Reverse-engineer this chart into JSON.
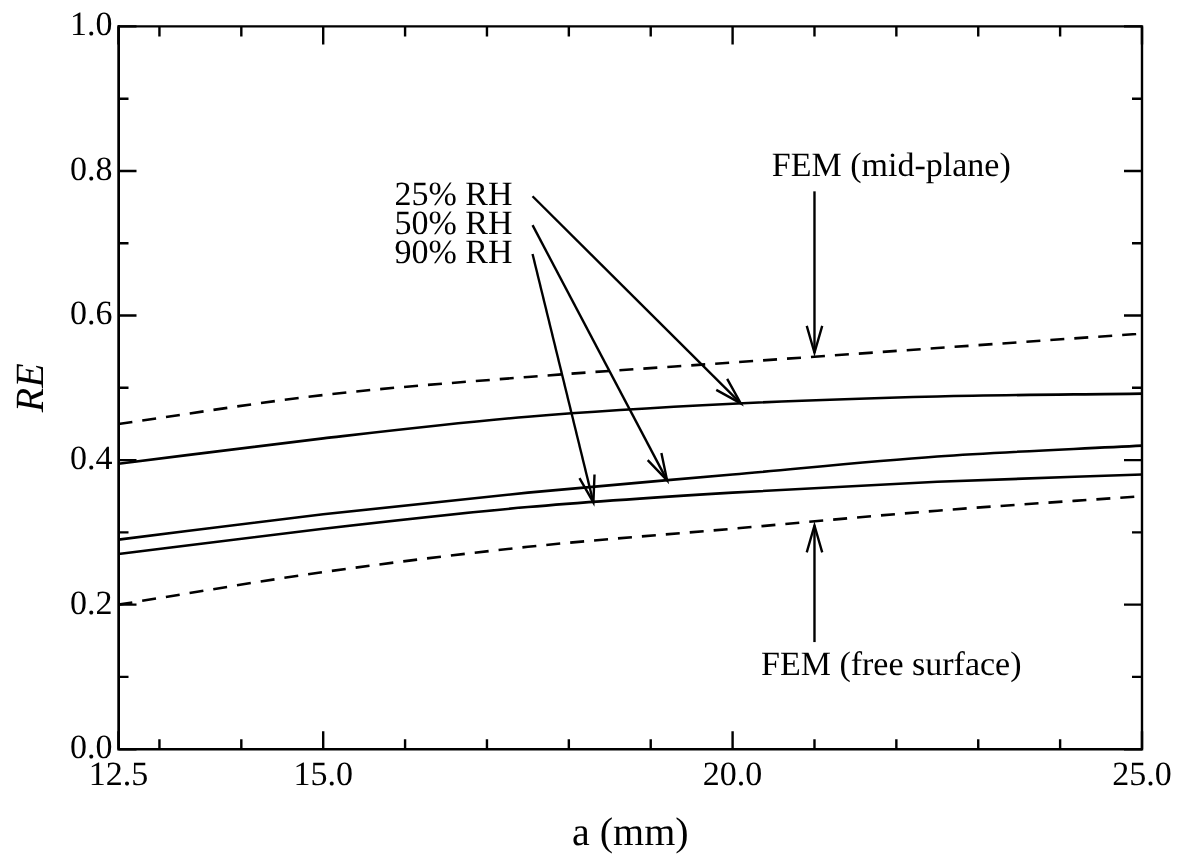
{
  "chart_data": {
    "type": "line",
    "xlabel": "a (mm)",
    "ylabel": "RE",
    "x": [
      12.5,
      15,
      17.5,
      20,
      22.5,
      25
    ],
    "series": [
      {
        "name": "FEM (mid-plane)",
        "color": "#000000",
        "line_style": "dashed",
        "values": [
          0.45,
          0.49,
          0.515,
          0.535,
          0.555,
          0.575
        ]
      },
      {
        "name": "25% RH",
        "color": "#000000",
        "values": [
          0.395,
          0.43,
          0.46,
          0.478,
          0.488,
          0.492
        ]
      },
      {
        "name": "50% RH",
        "color": "#000000",
        "values": [
          0.29,
          0.325,
          0.355,
          0.38,
          0.405,
          0.42
        ]
      },
      {
        "name": "90% RH",
        "color": "#000000",
        "values": [
          0.27,
          0.305,
          0.335,
          0.355,
          0.37,
          0.38
        ]
      },
      {
        "name": "FEM (free surface)",
        "color": "#000000",
        "line_style": "dashed",
        "values": [
          0.2,
          0.245,
          0.28,
          0.305,
          0.33,
          0.35
        ]
      }
    ],
    "xlim": [
      12.5,
      25
    ],
    "xticks": [
      12.5,
      {
        "value": 13,
        "label": null
      },
      {
        "value": 14,
        "label": null
      },
      {
        "value": 15,
        "label": "15.0"
      },
      {
        "value": 16,
        "label": null
      },
      {
        "value": 17,
        "label": null
      },
      {
        "value": 18,
        "label": null
      },
      {
        "value": 19,
        "label": null
      },
      {
        "value": 20,
        "label": "20.0"
      },
      {
        "value": 21,
        "label": null
      },
      {
        "value": 22,
        "label": null
      },
      {
        "value": 23,
        "label": null
      },
      {
        "value": 24,
        "label": null
      },
      {
        "value": 25,
        "label": "25.0"
      }
    ],
    "ylim": [
      0,
      1
    ],
    "yticks": [
      {
        "value": 0,
        "label": "0.0"
      },
      {
        "value": 0.1,
        "label": null
      },
      {
        "value": 0.2,
        "label": "0.2"
      },
      {
        "value": 0.3,
        "label": null
      },
      {
        "value": 0.4,
        "label": "0.4"
      },
      {
        "value": 0.5,
        "label": null
      },
      {
        "value": 0.6,
        "label": "0.6"
      },
      {
        "value": 0.7,
        "label": null
      },
      {
        "value": 0.8,
        "label": "0.8"
      },
      {
        "value": 0.9,
        "label": null
      },
      {
        "value": 1,
        "label": "1.0"
      }
    ],
    "grid": false,
    "legend": false,
    "marker": "none"
  }
}
